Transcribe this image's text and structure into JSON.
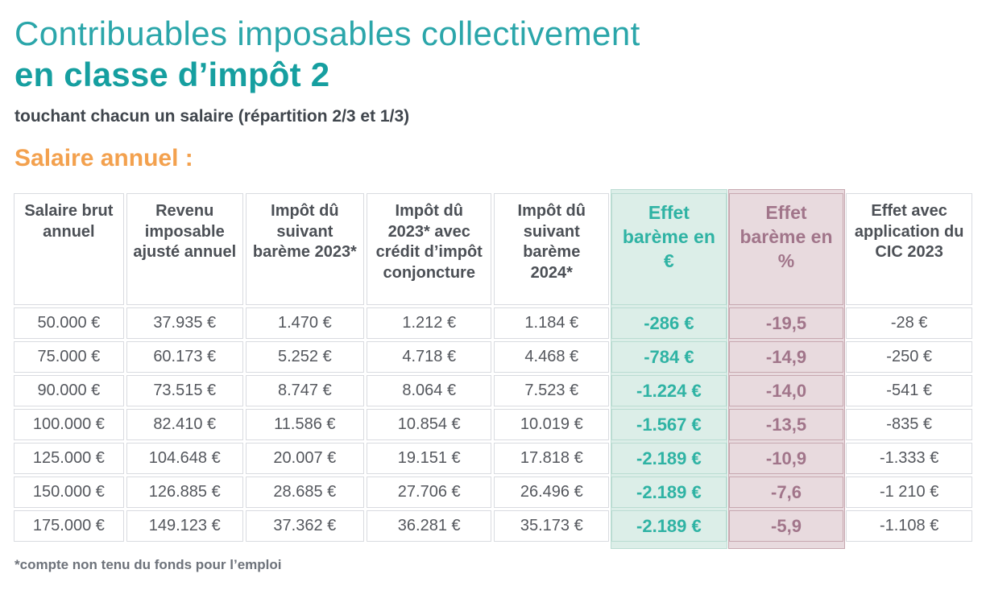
{
  "header": {
    "title_line1": "Contribuables imposables collectivement",
    "title_line2": "en classe d’impôt 2",
    "subtitle": "touchant chacun un salaire (répartition 2/3 et 1/3)",
    "section_label": "Salaire annuel :"
  },
  "colors": {
    "title_teal": "#2ba6aa",
    "title_teal2": "#169fa0",
    "section_orange": "#f3a14e",
    "effet_eur_bg": "#dceee8",
    "effet_eur_border": "#badcd2",
    "effet_eur_text": "#2fb3a4",
    "effet_pct_bg": "#e8dade",
    "effet_pct_border": "#c7a8b0",
    "effet_pct_text": "#a1758a"
  },
  "table": {
    "columns": [
      {
        "label": "Salaire brut annuel",
        "style": "plain"
      },
      {
        "label": "Revenu imposable ajusté annuel",
        "style": "plain"
      },
      {
        "label": "Impôt dû suivant barème 2023*",
        "style": "plain"
      },
      {
        "label": "Impôt dû 2023* avec crédit d’impôt conjoncture",
        "style": "plain"
      },
      {
        "label": "Impôt dû suivant barème 2024*",
        "style": "plain"
      },
      {
        "label": "Effet barème en €",
        "style": "teal"
      },
      {
        "label": "Effet barème en %",
        "style": "pink"
      },
      {
        "label": "Effet avec application du CIC 2023",
        "style": "plain"
      }
    ],
    "rows": [
      [
        "50.000 €",
        "37.935 €",
        "1.470 €",
        "1.212 €",
        "1.184 €",
        "-286 €",
        "-19,5",
        "-28 €"
      ],
      [
        "75.000 €",
        "60.173 €",
        "5.252 €",
        "4.718 €",
        "4.468 €",
        "-784 €",
        "-14,9",
        "-250 €"
      ],
      [
        "90.000 €",
        "73.515 €",
        "8.747 €",
        "8.064 €",
        "7.523 €",
        "-1.224 €",
        "-14,0",
        "-541 €"
      ],
      [
        "100.000 €",
        "82.410 €",
        "11.586 €",
        "10.854 €",
        "10.019 €",
        "-1.567 €",
        "-13,5",
        "-835 €"
      ],
      [
        "125.000 €",
        "104.648 €",
        "20.007 €",
        "19.151 €",
        "17.818 €",
        "-2.189 €",
        "-10,9",
        "-1.333 €"
      ],
      [
        "150.000 €",
        "126.885 €",
        "28.685 €",
        "27.706 €",
        "26.496 €",
        "-2.189 €",
        "-7,6",
        "-1 210 €"
      ],
      [
        "175.000 €",
        "149.123 €",
        "37.362 €",
        "36.281 €",
        "35.173 €",
        "-2.189 €",
        "-5,9",
        "-1.108 €"
      ]
    ]
  },
  "footnote": "*compte non tenu du fonds pour l’emploi"
}
